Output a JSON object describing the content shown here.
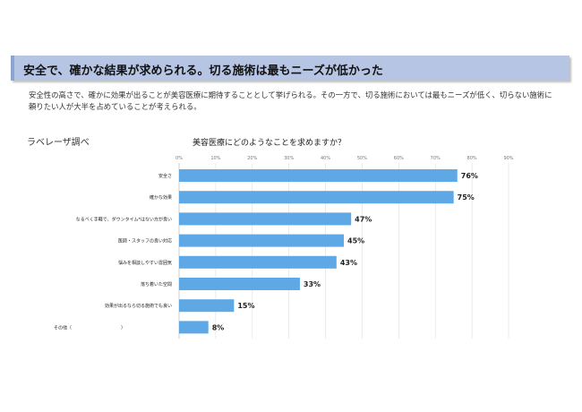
{
  "banner": {
    "title": "安全で、確かな結果が求められる。切る施術は最もニーズが低かった"
  },
  "description": "安全性の高さで、確かに効果が出ることが美容医療に期待することとして挙げられる。その一方で、切る施術においては最もニーズが低く、切らない施術に頼りたい人が大半を占めていることが考えられる。",
  "source": "ラベレーザ調べ",
  "chart_data": {
    "type": "bar",
    "orientation": "horizontal",
    "title": "美容医療にどのようなことを求めますか？",
    "categories": [
      "安全さ",
      "確かな効果",
      "なるべく手軽で、ダウンタイム*はない方が良い",
      "医師・スタッフの良い対応",
      "悩みを相談しやすい雰囲気",
      "落ち着いた空間",
      "効果が出るなら切る施術でも良い",
      "その他（　　　　　　　　　　　）"
    ],
    "values": [
      76,
      75,
      47,
      45,
      43,
      33,
      15,
      8
    ],
    "value_labels": [
      "76%",
      "75%",
      "47%",
      "45%",
      "43%",
      "33%",
      "15%",
      "8%"
    ],
    "xlim": [
      0,
      90
    ],
    "xticks": [
      "0%",
      "10%",
      "20%",
      "30%",
      "40%",
      "50%",
      "60%",
      "70%",
      "80%",
      "90%"
    ],
    "grid": true,
    "bar_color": "#5fa8e6"
  }
}
